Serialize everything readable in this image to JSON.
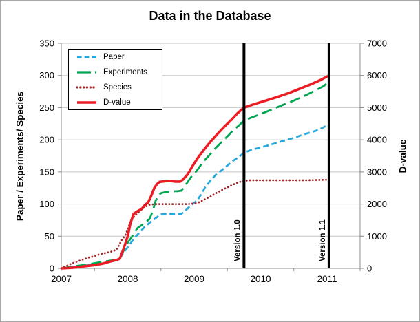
{
  "window": {
    "background": "#FFFFFF",
    "border_color": "#A9A9A9"
  },
  "chart_data": {
    "type": "line",
    "title": "Data in the Database",
    "grid": "horizontal",
    "grid_color": "#C6C6C6",
    "axis_color": "#8C8C8C",
    "x_axis": {
      "tick_labels": [
        "2007",
        "2008",
        "2009",
        "2010",
        "2011"
      ],
      "tick_years": [
        2007,
        2008,
        2009,
        2010,
        2011
      ],
      "minor_tick_years": [
        2007.5,
        2008.5,
        2009.5,
        2010.5
      ],
      "range": [
        2007,
        2011.5
      ]
    },
    "y_axis_left": {
      "label": "Paper / Experiments/ Species",
      "range": [
        0,
        350
      ],
      "tick_step": 50,
      "tick_labels": [
        "0",
        "50",
        "100",
        "150",
        "200",
        "250",
        "300",
        "350"
      ]
    },
    "y_axis_right": {
      "label": "D-value",
      "range": [
        0,
        7000
      ],
      "tick_step": 1000,
      "tick_labels": [
        "0",
        "1000",
        "2000",
        "3000",
        "4000",
        "5000",
        "6000",
        "7000"
      ]
    },
    "legend": {
      "position": "top-left-inside",
      "items": [
        "Paper",
        "Experiments",
        "Species",
        "D-value"
      ]
    },
    "annotations": [
      {
        "label": "Version 1.0",
        "x": 2009.75,
        "color": "#000000"
      },
      {
        "label": "Version 1.1",
        "x": 2011.03,
        "color": "#000000"
      }
    ],
    "series": [
      {
        "name": "Paper",
        "axis": "left",
        "color": "#29A8DC",
        "style": "dashed",
        "points": [
          [
            2007,
            0
          ],
          [
            2007.17,
            2
          ],
          [
            2007.33,
            4
          ],
          [
            2007.5,
            6
          ],
          [
            2007.67,
            9
          ],
          [
            2007.8,
            12
          ],
          [
            2007.88,
            15
          ],
          [
            2007.94,
            25
          ],
          [
            2008,
            33
          ],
          [
            2008.1,
            47
          ],
          [
            2008.17,
            55
          ],
          [
            2008.25,
            64
          ],
          [
            2008.33,
            71
          ],
          [
            2008.42,
            78
          ],
          [
            2008.5,
            84
          ],
          [
            2008.58,
            85
          ],
          [
            2008.67,
            85
          ],
          [
            2008.75,
            85
          ],
          [
            2008.81,
            85
          ],
          [
            2008.88,
            91
          ],
          [
            2008.96,
            99
          ],
          [
            2009.04,
            105
          ],
          [
            2009.1,
            114
          ],
          [
            2009.17,
            127
          ],
          [
            2009.25,
            137
          ],
          [
            2009.33,
            146
          ],
          [
            2009.42,
            153
          ],
          [
            2009.5,
            160
          ],
          [
            2009.58,
            167
          ],
          [
            2009.67,
            173
          ],
          [
            2009.75,
            180
          ],
          [
            2009.83,
            183
          ],
          [
            2009.92,
            186
          ],
          [
            2010,
            188
          ],
          [
            2010.17,
            193
          ],
          [
            2010.33,
            198
          ],
          [
            2010.5,
            203
          ],
          [
            2010.67,
            209
          ],
          [
            2010.83,
            214
          ],
          [
            2010.92,
            218
          ],
          [
            2011.03,
            224
          ]
        ]
      },
      {
        "name": "Experiments",
        "axis": "left",
        "color": "#00A551",
        "style": "long-dash",
        "points": [
          [
            2007,
            0
          ],
          [
            2007.17,
            3
          ],
          [
            2007.33,
            5
          ],
          [
            2007.5,
            8
          ],
          [
            2007.67,
            11
          ],
          [
            2007.8,
            13
          ],
          [
            2007.88,
            16
          ],
          [
            2007.94,
            28
          ],
          [
            2008,
            40
          ],
          [
            2008.05,
            47
          ],
          [
            2008.1,
            55
          ],
          [
            2008.15,
            63
          ],
          [
            2008.25,
            70
          ],
          [
            2008.33,
            77
          ],
          [
            2008.38,
            90
          ],
          [
            2008.42,
            105
          ],
          [
            2008.46,
            113
          ],
          [
            2008.5,
            117
          ],
          [
            2008.58,
            119
          ],
          [
            2008.67,
            120
          ],
          [
            2008.75,
            120
          ],
          [
            2008.81,
            121
          ],
          [
            2008.88,
            131
          ],
          [
            2008.96,
            143
          ],
          [
            2009.04,
            152
          ],
          [
            2009.13,
            165
          ],
          [
            2009.21,
            174
          ],
          [
            2009.33,
            188
          ],
          [
            2009.46,
            201
          ],
          [
            2009.58,
            214
          ],
          [
            2009.67,
            222
          ],
          [
            2009.75,
            230
          ],
          [
            2009.87,
            235
          ],
          [
            2010,
            240
          ],
          [
            2010.17,
            247
          ],
          [
            2010.33,
            254
          ],
          [
            2010.5,
            261
          ],
          [
            2010.67,
            269
          ],
          [
            2010.83,
            277
          ],
          [
            2010.94,
            283
          ],
          [
            2011.03,
            290
          ]
        ]
      },
      {
        "name": "Species",
        "axis": "left",
        "color": "#A52528",
        "style": "dotted",
        "points": [
          [
            2007,
            0
          ],
          [
            2007.08,
            4
          ],
          [
            2007.17,
            8
          ],
          [
            2007.25,
            11
          ],
          [
            2007.33,
            14
          ],
          [
            2007.42,
            17
          ],
          [
            2007.5,
            19
          ],
          [
            2007.58,
            22
          ],
          [
            2007.67,
            24
          ],
          [
            2007.75,
            26
          ],
          [
            2007.83,
            29
          ],
          [
            2007.9,
            42
          ],
          [
            2007.97,
            53
          ],
          [
            2008.04,
            72
          ],
          [
            2008.1,
            81
          ],
          [
            2008.17,
            88
          ],
          [
            2008.25,
            95
          ],
          [
            2008.33,
            99
          ],
          [
            2008.42,
            100
          ],
          [
            2008.58,
            100
          ],
          [
            2008.75,
            100
          ],
          [
            2008.92,
            100
          ],
          [
            2009,
            101
          ],
          [
            2009.08,
            103
          ],
          [
            2009.17,
            108
          ],
          [
            2009.25,
            112
          ],
          [
            2009.33,
            117
          ],
          [
            2009.42,
            122
          ],
          [
            2009.5,
            126
          ],
          [
            2009.58,
            130
          ],
          [
            2009.67,
            134
          ],
          [
            2009.75,
            136
          ],
          [
            2009.83,
            137
          ],
          [
            2010,
            137
          ],
          [
            2010.33,
            137
          ],
          [
            2010.67,
            137
          ],
          [
            2011.03,
            138
          ]
        ]
      },
      {
        "name": "D-value",
        "axis": "right",
        "color": "#EC1C24",
        "style": "solid",
        "points": [
          [
            2007,
            0
          ],
          [
            2007.17,
            20
          ],
          [
            2007.33,
            60
          ],
          [
            2007.5,
            100
          ],
          [
            2007.63,
            150
          ],
          [
            2007.75,
            220
          ],
          [
            2007.83,
            260
          ],
          [
            2007.88,
            300
          ],
          [
            2007.94,
            620
          ],
          [
            2008,
            1000
          ],
          [
            2008.04,
            1400
          ],
          [
            2008.09,
            1700
          ],
          [
            2008.15,
            1780
          ],
          [
            2008.21,
            1850
          ],
          [
            2008.25,
            1950
          ],
          [
            2008.31,
            2060
          ],
          [
            2008.35,
            2240
          ],
          [
            2008.4,
            2500
          ],
          [
            2008.44,
            2620
          ],
          [
            2008.48,
            2690
          ],
          [
            2008.56,
            2710
          ],
          [
            2008.63,
            2720
          ],
          [
            2008.71,
            2700
          ],
          [
            2008.79,
            2700
          ],
          [
            2008.83,
            2760
          ],
          [
            2008.9,
            2920
          ],
          [
            2008.98,
            3200
          ],
          [
            2009.06,
            3450
          ],
          [
            2009.15,
            3700
          ],
          [
            2009.25,
            3950
          ],
          [
            2009.35,
            4180
          ],
          [
            2009.46,
            4420
          ],
          [
            2009.56,
            4620
          ],
          [
            2009.65,
            4820
          ],
          [
            2009.75,
            5000
          ],
          [
            2009.92,
            5120
          ],
          [
            2010.08,
            5220
          ],
          [
            2010.25,
            5330
          ],
          [
            2010.42,
            5450
          ],
          [
            2010.58,
            5580
          ],
          [
            2010.75,
            5720
          ],
          [
            2010.9,
            5860
          ],
          [
            2011.03,
            6000
          ]
        ]
      }
    ]
  }
}
